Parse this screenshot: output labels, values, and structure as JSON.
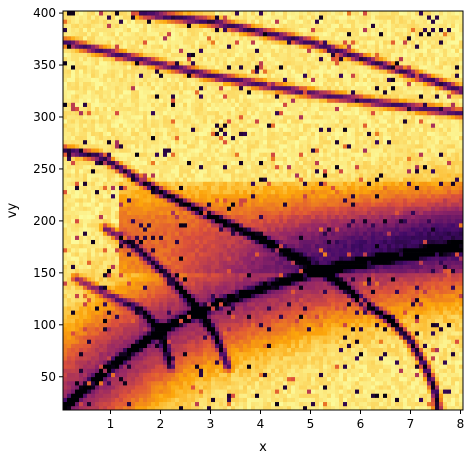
{
  "chart_data": {
    "type": "heatmap",
    "title": "",
    "xlabel": "x",
    "ylabel": "vy",
    "xlim": [
      0.05,
      8.05
    ],
    "ylim": [
      18,
      402
    ],
    "x_ticks": [
      1,
      2,
      3,
      4,
      5,
      6,
      7,
      8
    ],
    "y_ticks": [
      50,
      100,
      150,
      200,
      250,
      300,
      350,
      400
    ],
    "x_tick_labels": [
      "1",
      "2",
      "3",
      "4",
      "5",
      "6",
      "7",
      "8"
    ],
    "y_tick_labels": [
      "50",
      "100",
      "150",
      "200",
      "250",
      "300",
      "350",
      "400"
    ],
    "colormap": "inferno",
    "colormap_stops": [
      "#000004",
      "#420a68",
      "#932667",
      "#dd513a",
      "#fca50a",
      "#fcffa4"
    ],
    "colorbar": false,
    "grid": false,
    "grid_size": [
      100,
      96
    ],
    "dark_bands": [
      {
        "points": [
          [
            0.1,
            22
          ],
          [
            1.0,
            60
          ],
          [
            2.0,
            95
          ],
          [
            3.0,
            118
          ],
          [
            4.0,
            135
          ],
          [
            5.0,
            150
          ],
          [
            6.0,
            160
          ],
          [
            7.0,
            168
          ],
          [
            8.0,
            176
          ]
        ],
        "strength": 1.0
      },
      {
        "points": [
          [
            0.1,
            268
          ],
          [
            0.8,
            262
          ],
          [
            2.0,
            228
          ],
          [
            3.0,
            205
          ],
          [
            4.0,
            183
          ],
          [
            5.0,
            158
          ],
          [
            5.6,
            140
          ],
          [
            6.1,
            120
          ],
          [
            6.6,
            105
          ]
        ],
        "strength": 0.85
      },
      {
        "points": [
          [
            0.1,
            372
          ],
          [
            1.0,
            362
          ],
          [
            3.0,
            340
          ],
          [
            5.0,
            323
          ],
          [
            7.0,
            310
          ],
          [
            8.0,
            304
          ]
        ],
        "strength": 0.75
      },
      {
        "points": [
          [
            1.6,
            400
          ],
          [
            3.0,
            392
          ],
          [
            5.0,
            372
          ],
          [
            7.0,
            342
          ],
          [
            8.0,
            326
          ]
        ],
        "strength": 0.8
      },
      {
        "points": [
          [
            0.9,
            193
          ],
          [
            1.5,
            175
          ],
          [
            2.2,
            145
          ],
          [
            2.7,
            118
          ],
          [
            3.1,
            90
          ],
          [
            3.35,
            60
          ]
        ],
        "strength": 0.65
      },
      {
        "points": [
          [
            0.3,
            145
          ],
          [
            0.9,
            130
          ],
          [
            1.6,
            115
          ],
          [
            2.0,
            95
          ],
          [
            2.2,
            60
          ]
        ],
        "strength": 0.55
      },
      {
        "points": [
          [
            6.6,
            105
          ],
          [
            7.0,
            85
          ],
          [
            7.3,
            60
          ],
          [
            7.5,
            35
          ],
          [
            7.55,
            18
          ]
        ],
        "strength": 0.9
      }
    ]
  }
}
